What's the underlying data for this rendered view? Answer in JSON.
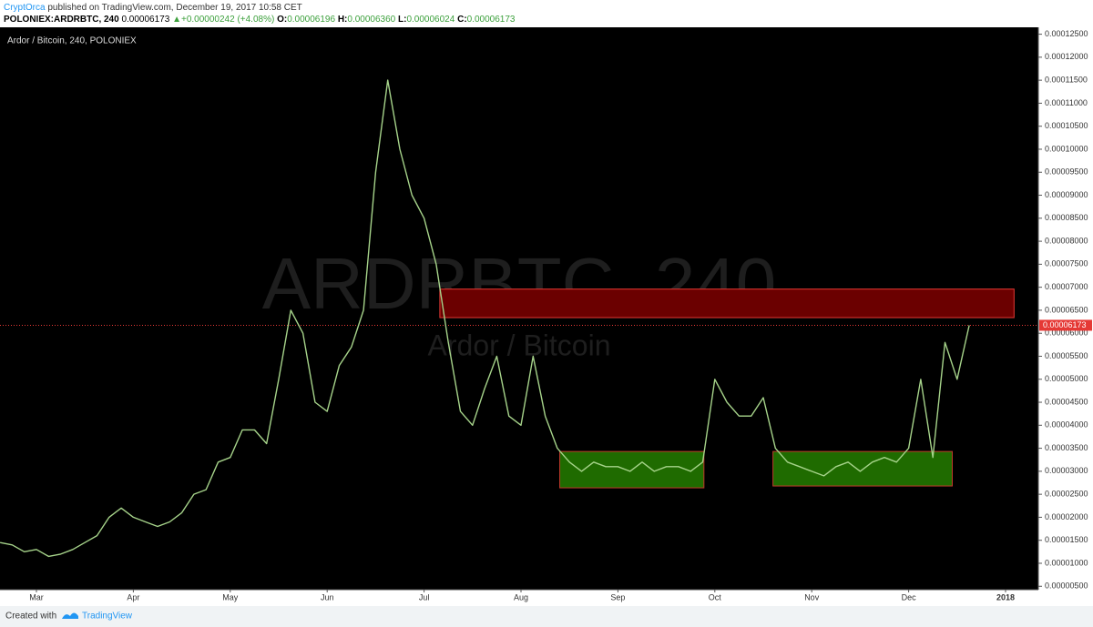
{
  "header": {
    "author": "CryptOrca",
    "published": "published on TradingView.com, December 19, 2017 10:58 CET",
    "symbol": "POLONIEX:ARDRBTC, 240",
    "price": "0.00006173",
    "arrow": "▲",
    "change": "+0.00000242 (+4.08%)",
    "o_label": "O:",
    "o": "0.00006196",
    "h_label": "H:",
    "h": "0.00006360",
    "l_label": "L:",
    "l": "0.00006024",
    "c_label": "C:",
    "c": "0.00006173"
  },
  "footer": {
    "created": "Created with",
    "brand": "TradingView"
  },
  "chart_data": {
    "type": "line",
    "title": "Ardor / Bitcoin, 240, POLONIEX",
    "watermark": [
      "ARDRBTC, 240",
      "Ardor / Bitcoin"
    ],
    "categories": [
      null,
      null,
      null,
      "Mar",
      null,
      null,
      null,
      null,
      null,
      null,
      null,
      "Apr",
      null,
      null,
      null,
      null,
      null,
      null,
      null,
      "May",
      null,
      null,
      null,
      null,
      null,
      null,
      null,
      "Jun",
      null,
      null,
      null,
      null,
      null,
      null,
      null,
      "Jul",
      null,
      null,
      null,
      null,
      null,
      null,
      null,
      "Aug",
      null,
      null,
      null,
      null,
      null,
      null,
      null,
      "Sep",
      null,
      null,
      null,
      null,
      null,
      null,
      null,
      "Oct",
      null,
      null,
      null,
      null,
      null,
      null,
      null,
      "Nov",
      null,
      null,
      null,
      null,
      null,
      null,
      null,
      "Dec",
      null,
      null,
      null,
      null,
      null,
      null,
      null,
      "2018"
    ],
    "series": [
      {
        "name": "ARDRBTC",
        "color": "#a6d38a",
        "values": [
          1.45e-05,
          1.4e-05,
          1.25e-05,
          1.3e-05,
          1.15e-05,
          1.2e-05,
          1.3e-05,
          1.45e-05,
          1.6e-05,
          2e-05,
          2.2e-05,
          2e-05,
          1.9e-05,
          1.8e-05,
          1.9e-05,
          2.1e-05,
          2.5e-05,
          2.6e-05,
          3.2e-05,
          3.3e-05,
          3.9e-05,
          3.9e-05,
          3.6e-05,
          5e-05,
          6.5e-05,
          6e-05,
          4.5e-05,
          4.3e-05,
          5.3e-05,
          5.7e-05,
          6.5e-05,
          9.5e-05,
          0.000115,
          0.0001,
          9e-05,
          8.5e-05,
          7.5e-05,
          5.8e-05,
          4.3e-05,
          4e-05,
          4.8e-05,
          5.5e-05,
          4.2e-05,
          4e-05,
          5.5e-05,
          4.2e-05,
          3.5e-05,
          3.2e-05,
          3e-05,
          3.2e-05,
          3.1e-05,
          3.1e-05,
          3e-05,
          3.2e-05,
          3e-05,
          3.1e-05,
          3.1e-05,
          3e-05,
          3.2e-05,
          5e-05,
          4.5e-05,
          4.2e-05,
          4.2e-05,
          4.6e-05,
          3.5e-05,
          3.2e-05,
          3.1e-05,
          3e-05,
          2.9e-05,
          3.1e-05,
          3.2e-05,
          3e-05,
          3.2e-05,
          3.3e-05,
          3.2e-05,
          3.5e-05,
          5e-05,
          3.3e-05,
          5.8e-05,
          5e-05,
          6.173e-05,
          null,
          null,
          null
        ]
      }
    ],
    "zones": [
      {
        "color": "#6b0000",
        "border": "#e53935",
        "x": [
          36.3,
          83.7
        ],
        "ylim": [
          6.34e-05,
          6.96e-05
        ]
      },
      {
        "color": "#1f6b00",
        "border": "#c0392b",
        "x": [
          46.2,
          58.1
        ],
        "ylim": [
          2.64e-05,
          3.43e-05
        ]
      },
      {
        "color": "#1f6b00",
        "border": "#c0392b",
        "x": [
          63.8,
          78.6
        ],
        "ylim": [
          2.68e-05,
          3.43e-05
        ]
      }
    ],
    "last_price": {
      "value": 6.173e-05,
      "label": "0.00006173",
      "color": "#e53935"
    },
    "ylim": [
      4.26e-06,
      0.0001265
    ],
    "yticks": [
      {
        "value": 5e-06,
        "label": "0.00000500"
      },
      {
        "value": 1e-05,
        "label": "0.00001000"
      },
      {
        "value": 1.5e-05,
        "label": "0.00001500"
      },
      {
        "value": 2e-05,
        "label": "0.00002000"
      },
      {
        "value": 2.5e-05,
        "label": "0.00002500"
      },
      {
        "value": 3e-05,
        "label": "0.00003000"
      },
      {
        "value": 3.5e-05,
        "label": "0.00003500"
      },
      {
        "value": 4e-05,
        "label": "0.00004000"
      },
      {
        "value": 4.5e-05,
        "label": "0.00004500"
      },
      {
        "value": 5e-05,
        "label": "0.00005000"
      },
      {
        "value": 5.5e-05,
        "label": "0.00005500"
      },
      {
        "value": 6e-05,
        "label": "0.00006000"
      },
      {
        "value": 6.5e-05,
        "label": "0.00006500"
      },
      {
        "value": 7e-05,
        "label": "0.00007000"
      },
      {
        "value": 7.5e-05,
        "label": "0.00007500"
      },
      {
        "value": 8e-05,
        "label": "0.00008000"
      },
      {
        "value": 8.5e-05,
        "label": "0.00008500"
      },
      {
        "value": 9e-05,
        "label": "0.00009000"
      },
      {
        "value": 9.5e-05,
        "label": "0.00009500"
      },
      {
        "value": 0.0001,
        "label": "0.00010000"
      },
      {
        "value": 0.000105,
        "label": "0.00010500"
      },
      {
        "value": 0.00011,
        "label": "0.00011000"
      },
      {
        "value": 0.000115,
        "label": "0.00011500"
      },
      {
        "value": 0.00012,
        "label": "0.00012000"
      },
      {
        "value": 0.000125,
        "label": "0.00012500"
      }
    ],
    "grid": false
  }
}
